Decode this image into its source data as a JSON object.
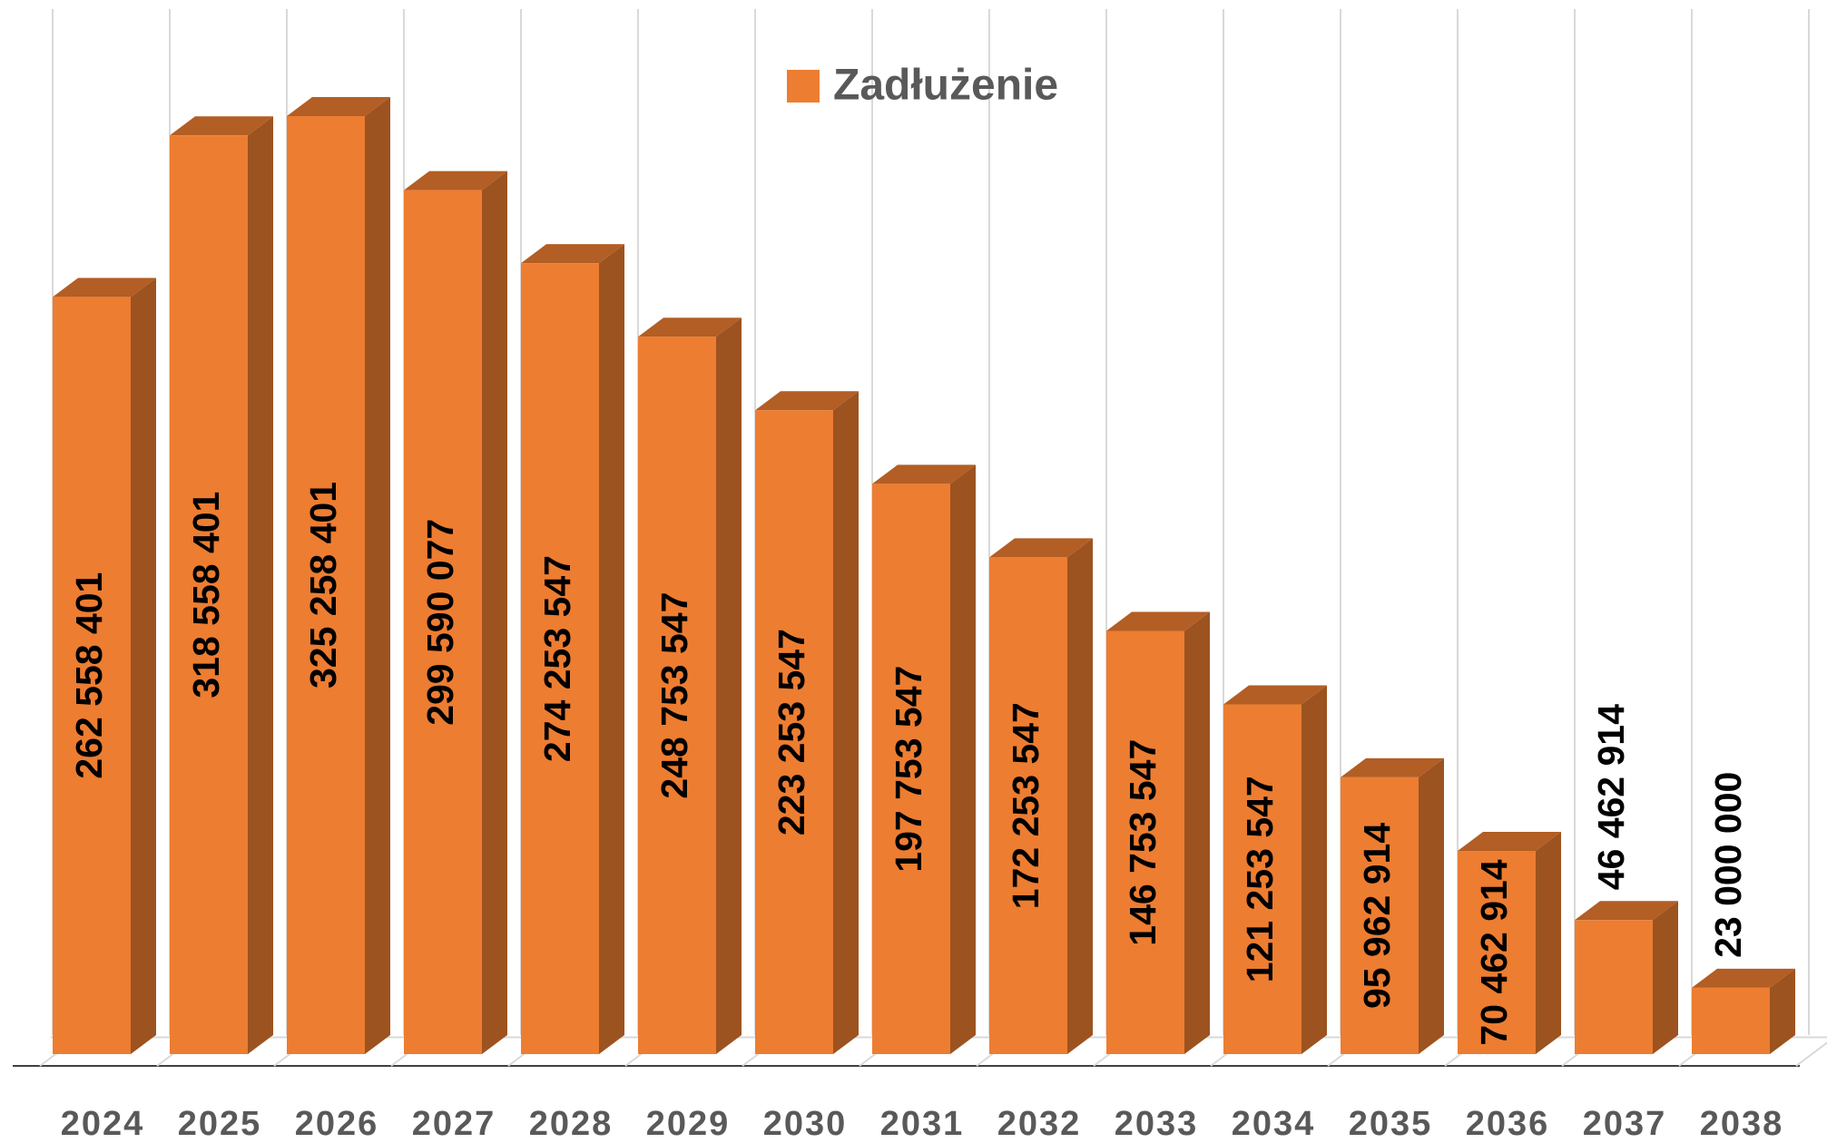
{
  "chart_data": {
    "type": "bar3d",
    "categories": [
      "2024",
      "2025",
      "2026",
      "2027",
      "2028",
      "2029",
      "2030",
      "2031",
      "2032",
      "2033",
      "2034",
      "2035",
      "2036",
      "2037",
      "2038"
    ],
    "series": [
      {
        "name": "Zadłużenie",
        "color": "#ED7D31",
        "values": [
          262558401,
          318558401,
          325258401,
          299590077,
          274253547,
          248753547,
          223253547,
          197753547,
          172253547,
          146753547,
          121253547,
          95962914,
          70462914,
          46462914,
          23000000
        ],
        "value_labels": [
          "262 558 401",
          "318 558 401",
          "325 258 401",
          "299 590 077",
          "274 253 547",
          "248 753 547",
          "223 253 547",
          "197 753 547",
          "172 253 547",
          "146 753 547",
          "121 253 547",
          "95 962 914",
          "70 462 914",
          "46 462 914",
          "23 000 000"
        ]
      }
    ],
    "legend": "top"
  }
}
